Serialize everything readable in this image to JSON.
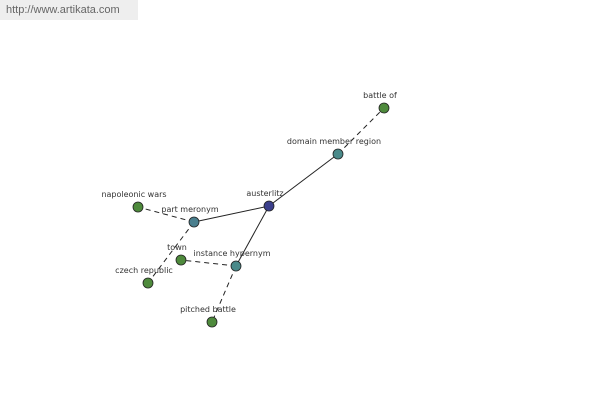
{
  "header": {
    "url": "http://www.artikata.com"
  },
  "nodes": [
    {
      "label": "austerlitz"
    },
    {
      "label": "domain member region"
    },
    {
      "label": "battle of"
    },
    {
      "label": "part meronym"
    },
    {
      "label": "napoleonic wars"
    },
    {
      "label": "instance hypernym"
    },
    {
      "label": "town"
    },
    {
      "label": "czech republic"
    },
    {
      "label": "pitched battle"
    }
  ]
}
